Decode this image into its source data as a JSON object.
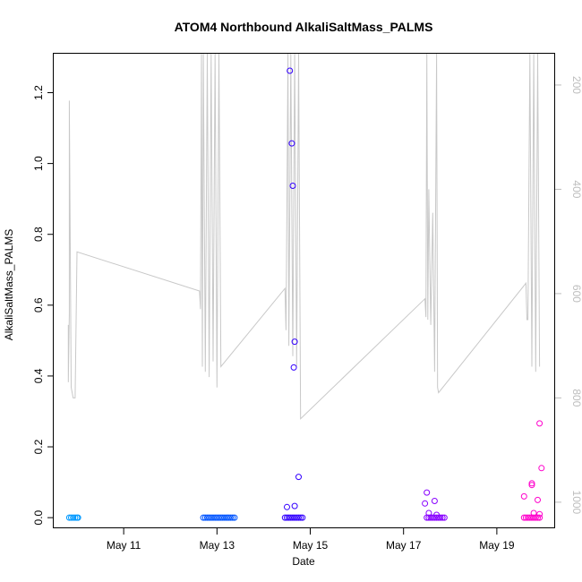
{
  "chart_data": {
    "type": "scatter",
    "title": "ATOM4 Northbound AlkaliSaltMass_PALMS",
    "xlabel": "Date",
    "ylabel": "AlkaliSaltMass_PALMS",
    "xlim": [
      "2014-05-09T12:00",
      "2014-05-20T06:00"
    ],
    "ylim": [
      -0.03,
      1.31
    ],
    "x_ticks": [
      {
        "date": "2014-05-11",
        "label": "May 11"
      },
      {
        "date": "2014-05-13",
        "label": "May 13"
      },
      {
        "date": "2014-05-15",
        "label": "May 15"
      },
      {
        "date": "2014-05-17",
        "label": "May 17"
      },
      {
        "date": "2014-05-19",
        "label": "May 19"
      }
    ],
    "y_ticks": [
      0.0,
      0.2,
      0.4,
      0.6,
      0.8,
      1.0,
      1.2
    ],
    "y_tick_labels": [
      "0.0",
      "0.2",
      "0.4",
      "0.6",
      "0.8",
      "1.0",
      "1.2"
    ],
    "y2": {
      "reversed": true,
      "ylim": [
        1050,
        140
      ],
      "ticks": [
        200,
        400,
        600,
        800,
        1000
      ],
      "tick_labels": [
        "200",
        "400",
        "600",
        "800",
        "1000"
      ],
      "color": "#bdbdbd"
    },
    "grid": false,
    "series": [
      {
        "marker": "open-circle",
        "color": "#0099ff",
        "points": [
          [
            "2014-05-09T20:00",
            0
          ],
          [
            "2014-05-09T21:00",
            0
          ],
          [
            "2014-05-09T22:00",
            0
          ],
          [
            "2014-05-09T23:00",
            0
          ],
          [
            "2014-05-10T00:00",
            0
          ],
          [
            "2014-05-10T00:30",
            0
          ]
        ]
      },
      {
        "marker": "open-circle",
        "color": "#0055ff",
        "points": [
          [
            "2014-05-12T17:00",
            0
          ],
          [
            "2014-05-12T18:00",
            0
          ],
          [
            "2014-05-12T19:00",
            0
          ],
          [
            "2014-05-12T20:00",
            0
          ],
          [
            "2014-05-12T21:00",
            0
          ],
          [
            "2014-05-12T22:00",
            0
          ],
          [
            "2014-05-12T23:00",
            0
          ],
          [
            "2014-05-13T00:00",
            0
          ],
          [
            "2014-05-13T01:00",
            0
          ],
          [
            "2014-05-13T02:00",
            0
          ],
          [
            "2014-05-13T03:00",
            0
          ],
          [
            "2014-05-13T04:00",
            0
          ],
          [
            "2014-05-13T05:00",
            0
          ],
          [
            "2014-05-13T06:00",
            0
          ],
          [
            "2014-05-13T07:00",
            0
          ],
          [
            "2014-05-13T08:00",
            0
          ],
          [
            "2014-05-13T09:00",
            0
          ]
        ]
      },
      {
        "marker": "open-circle",
        "color": "#3300ff",
        "points": [
          [
            "2014-05-14T13:30",
            1.262
          ],
          [
            "2014-05-14T14:30",
            1.057
          ],
          [
            "2014-05-14T15:00",
            0.937
          ],
          [
            "2014-05-14T16:00",
            0.497
          ],
          [
            "2014-05-14T15:30",
            0.424
          ],
          [
            "2014-05-14T18:00",
            0.115
          ],
          [
            "2014-05-14T12:00",
            0.03
          ],
          [
            "2014-05-14T16:00",
            0.033
          ],
          [
            "2014-05-14T12:00",
            0
          ],
          [
            "2014-05-14T13:00",
            0
          ],
          [
            "2014-05-14T14:00",
            0
          ],
          [
            "2014-05-14T15:00",
            0
          ],
          [
            "2014-05-14T16:00",
            0
          ],
          [
            "2014-05-14T17:00",
            0
          ],
          [
            "2014-05-14T18:00",
            0
          ],
          [
            "2014-05-14T19:00",
            0
          ],
          [
            "2014-05-14T20:00",
            0
          ],
          [
            "2014-05-14T11:00",
            0
          ]
        ]
      },
      {
        "marker": "open-circle",
        "color": "#8800ff",
        "points": [
          [
            "2014-05-17T12:00",
            0.071
          ],
          [
            "2014-05-17T11:00",
            0.04
          ],
          [
            "2014-05-17T16:00",
            0.047
          ],
          [
            "2014-05-17T13:00",
            0.013
          ],
          [
            "2014-05-17T17:00",
            0.008
          ],
          [
            "2014-05-17T12:00",
            0
          ],
          [
            "2014-05-17T13:00",
            0
          ],
          [
            "2014-05-17T14:00",
            0
          ],
          [
            "2014-05-17T15:00",
            0
          ],
          [
            "2014-05-17T16:00",
            0
          ],
          [
            "2014-05-17T17:00",
            0
          ],
          [
            "2014-05-17T18:00",
            0
          ],
          [
            "2014-05-17T19:00",
            0
          ],
          [
            "2014-05-17T20:00",
            0
          ],
          [
            "2014-05-17T21:00",
            0
          ]
        ]
      },
      {
        "marker": "open-circle",
        "color": "#ff00cc",
        "points": [
          [
            "2014-05-19T22:00",
            0.266
          ],
          [
            "2014-05-19T23:00",
            0.14
          ],
          [
            "2014-05-19T18:00",
            0.097
          ],
          [
            "2014-05-19T18:00",
            0.092
          ],
          [
            "2014-05-19T14:00",
            0.06
          ],
          [
            "2014-05-19T21:00",
            0.05
          ],
          [
            "2014-05-19T19:00",
            0.013
          ],
          [
            "2014-05-19T22:00",
            0.01
          ],
          [
            "2014-05-19T14:00",
            0
          ],
          [
            "2014-05-19T15:00",
            0
          ],
          [
            "2014-05-19T16:00",
            0
          ],
          [
            "2014-05-19T17:00",
            0
          ],
          [
            "2014-05-19T18:00",
            0
          ],
          [
            "2014-05-19T19:00",
            0
          ],
          [
            "2014-05-19T20:00",
            0
          ],
          [
            "2014-05-19T21:00",
            0
          ],
          [
            "2014-05-19T22:00",
            0
          ]
        ]
      },
      {
        "marker": "line",
        "axis": "y2",
        "color": "#c8c8c8",
        "points": [
          [
            "2014-05-09T19:30",
            660
          ],
          [
            "2014-05-09T19:30",
            770
          ],
          [
            "2014-05-09T20:00",
            640
          ],
          [
            "2014-05-09T20:00",
            230
          ],
          [
            "2014-05-09T21:00",
            780
          ],
          [
            "2014-05-09T22:00",
            800
          ],
          [
            "2014-05-09T23:00",
            800
          ],
          [
            "2014-05-10T00:00",
            520
          ],
          [
            "2014-05-12T15:00",
            595
          ],
          [
            "2014-05-12T15:30",
            630
          ],
          [
            "2014-05-12T16:00",
            140
          ],
          [
            "2014-05-12T16:30",
            740
          ],
          [
            "2014-05-12T17:00",
            140
          ],
          [
            "2014-05-12T18:00",
            750
          ],
          [
            "2014-05-12T19:00",
            140
          ],
          [
            "2014-05-12T20:00",
            760
          ],
          [
            "2014-05-12T21:00",
            140
          ],
          [
            "2014-05-12T22:00",
            730
          ],
          [
            "2014-05-12T23:00",
            140
          ],
          [
            "2014-05-13T00:00",
            780
          ],
          [
            "2014-05-13T01:00",
            140
          ],
          [
            "2014-05-13T02:00",
            740
          ],
          [
            "2014-05-14T11:00",
            590
          ],
          [
            "2014-05-14T11:30",
            670
          ],
          [
            "2014-05-14T12:00",
            420
          ],
          [
            "2014-05-14T12:30",
            140
          ],
          [
            "2014-05-14T13:00",
            700
          ],
          [
            "2014-05-14T14:00",
            140
          ],
          [
            "2014-05-14T15:00",
            720
          ],
          [
            "2014-05-14T16:00",
            140
          ],
          [
            "2014-05-14T17:00",
            740
          ],
          [
            "2014-05-14T18:00",
            140
          ],
          [
            "2014-05-14T19:00",
            840
          ],
          [
            "2014-05-17T11:00",
            610
          ],
          [
            "2014-05-17T11:30",
            645
          ],
          [
            "2014-05-17T12:00",
            140
          ],
          [
            "2014-05-17T12:30",
            650
          ],
          [
            "2014-05-17T13:00",
            400
          ],
          [
            "2014-05-17T14:00",
            660
          ],
          [
            "2014-05-17T15:00",
            445
          ],
          [
            "2014-05-17T16:00",
            750
          ],
          [
            "2014-05-17T17:00",
            140
          ],
          [
            "2014-05-17T17:30",
            780
          ],
          [
            "2014-05-17T18:00",
            790
          ],
          [
            "2014-05-19T15:00",
            580
          ],
          [
            "2014-05-19T15:30",
            650
          ],
          [
            "2014-05-19T16:00",
            650
          ],
          [
            "2014-05-19T17:00",
            140
          ],
          [
            "2014-05-19T18:00",
            740
          ],
          [
            "2014-05-19T19:00",
            140
          ],
          [
            "2014-05-19T20:00",
            750
          ],
          [
            "2014-05-19T21:00",
            140
          ],
          [
            "2014-05-19T22:00",
            740
          ]
        ]
      }
    ]
  }
}
